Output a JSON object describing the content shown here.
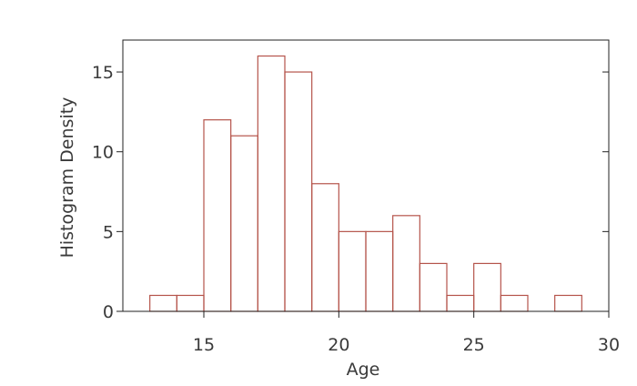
{
  "chart_data": {
    "type": "bar",
    "subtype": "histogram",
    "title": "",
    "xlabel": "Age",
    "ylabel": "Histogram Density",
    "xlim": [
      12,
      30
    ],
    "ylim": [
      0,
      17
    ],
    "x_ticks": [
      15,
      20,
      25,
      30
    ],
    "y_ticks": [
      0,
      5,
      10,
      15
    ],
    "bins": [
      {
        "start": 13,
        "end": 14,
        "value": 1
      },
      {
        "start": 14,
        "end": 15,
        "value": 1
      },
      {
        "start": 15,
        "end": 16,
        "value": 12
      },
      {
        "start": 16,
        "end": 17,
        "value": 11
      },
      {
        "start": 17,
        "end": 18,
        "value": 16
      },
      {
        "start": 18,
        "end": 19,
        "value": 15
      },
      {
        "start": 19,
        "end": 20,
        "value": 8
      },
      {
        "start": 20,
        "end": 21,
        "value": 5
      },
      {
        "start": 21,
        "end": 22,
        "value": 5
      },
      {
        "start": 22,
        "end": 23,
        "value": 6
      },
      {
        "start": 23,
        "end": 24,
        "value": 3
      },
      {
        "start": 24,
        "end": 25,
        "value": 1
      },
      {
        "start": 25,
        "end": 26,
        "value": 3
      },
      {
        "start": 26,
        "end": 27,
        "value": 1
      },
      {
        "start": 27,
        "end": 28,
        "value": 0
      },
      {
        "start": 28,
        "end": 29,
        "value": 1
      }
    ],
    "bar_color": "#b5544b",
    "grid": false,
    "legend": "none"
  }
}
